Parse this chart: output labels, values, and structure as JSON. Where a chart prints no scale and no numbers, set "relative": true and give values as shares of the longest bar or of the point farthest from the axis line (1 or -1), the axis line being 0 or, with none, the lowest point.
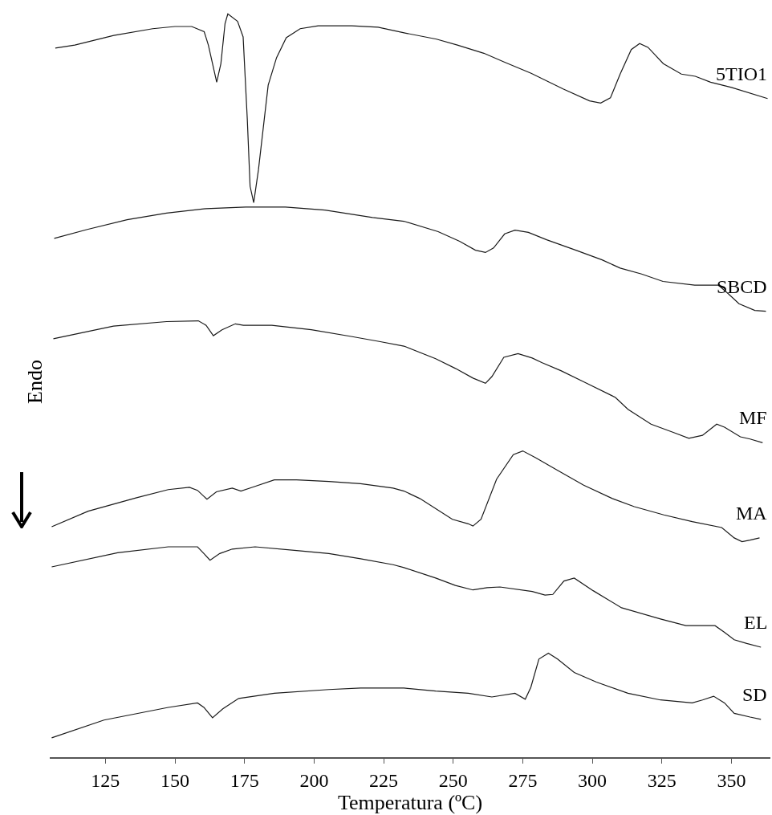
{
  "chart_data": {
    "type": "line",
    "relative": true,
    "xlabel": "Temperatura (ºC)",
    "ylabel": "Endo",
    "xlim": [
      105,
      364
    ],
    "xticks": [
      125,
      150,
      175,
      200,
      225,
      250,
      275,
      300,
      325,
      350
    ],
    "grid": false,
    "legend": false,
    "series": [
      {
        "name": "5TIO1",
        "color": "#1a1a1a",
        "x": [
          107,
          114,
          128,
          142,
          150,
          156,
          160.5,
          162,
          165,
          166.5,
          168,
          169,
          172.5,
          174.5,
          176,
          177,
          178.3,
          180,
          183.5,
          186.5,
          190,
          195,
          201.5,
          213.5,
          223,
          233,
          244,
          251.5,
          261,
          268.5,
          278,
          289.5,
          299,
          303,
          306.5,
          310,
          314,
          317,
          320,
          325.5,
          332,
          337,
          342.5,
          350,
          363
        ],
        "values": [
          0.954,
          0.958,
          0.971,
          0.98,
          0.983,
          0.983,
          0.976,
          0.958,
          0.908,
          0.933,
          0.987,
          1.0,
          0.99,
          0.969,
          0.858,
          0.768,
          0.746,
          0.79,
          0.904,
          0.941,
          0.968,
          0.98,
          0.984,
          0.984,
          0.982,
          0.974,
          0.966,
          0.958,
          0.947,
          0.935,
          0.92,
          0.899,
          0.883,
          0.88,
          0.887,
          0.919,
          0.952,
          0.96,
          0.955,
          0.933,
          0.919,
          0.916,
          0.908,
          0.901,
          0.886
        ]
      },
      {
        "name": "SBCD",
        "color": "#1a1a1a",
        "x": [
          106.6,
          118.5,
          132.8,
          147,
          161.2,
          175.4,
          189.7,
          203.9,
          221,
          232.3,
          244.6,
          252.3,
          258,
          261.6,
          264.5,
          268.5,
          272.2,
          277,
          283.6,
          294.1,
          303.5,
          310,
          317.7,
          325.4,
          336.8,
          345.3,
          349,
          352.7,
          358.4,
          362.4
        ],
        "values": [
          0.698,
          0.71,
          0.723,
          0.732,
          0.738,
          0.74,
          0.74,
          0.736,
          0.726,
          0.721,
          0.707,
          0.694,
          0.682,
          0.679,
          0.685,
          0.704,
          0.709,
          0.706,
          0.696,
          0.682,
          0.669,
          0.658,
          0.65,
          0.64,
          0.635,
          0.635,
          0.623,
          0.61,
          0.601,
          0.6
        ]
      },
      {
        "name": "MF",
        "color": "#1a1a1a",
        "x": [
          106.3,
          127.9,
          147,
          158.4,
          161.2,
          163.8,
          166.9,
          171.7,
          174.6,
          184.8,
          199,
          213.3,
          223.8,
          232.3,
          243.7,
          250.8,
          257.1,
          261.6,
          263.9,
          268.2,
          273.3,
          278.4,
          281.8,
          288.7,
          296.9,
          308.3,
          312.8,
          321.1,
          329.1,
          334.7,
          339.6,
          344.7,
          347.5,
          353.2,
          356.7,
          361.2
        ],
        "values": [
          0.563,
          0.58,
          0.586,
          0.587,
          0.581,
          0.567,
          0.575,
          0.583,
          0.581,
          0.581,
          0.575,
          0.566,
          0.559,
          0.553,
          0.536,
          0.523,
          0.51,
          0.503,
          0.512,
          0.538,
          0.543,
          0.537,
          0.531,
          0.52,
          0.505,
          0.484,
          0.468,
          0.448,
          0.437,
          0.429,
          0.433,
          0.448,
          0.444,
          0.431,
          0.428,
          0.423
        ]
      },
      {
        "name": "MA",
        "color": "#1a1a1a",
        "x": [
          105.7,
          118.8,
          136.2,
          147.6,
          155.2,
          158.1,
          161.5,
          164.9,
          170.6,
          173.7,
          177.7,
          185.7,
          193.7,
          205.3,
          216.7,
          228.4,
          232.3,
          238,
          249.7,
          255.4,
          257.1,
          260,
          265.6,
          271.6,
          275,
          279.6,
          287.5,
          296.9,
          307.2,
          315.1,
          325.7,
          335.9,
          346.5,
          351,
          353.8,
          356.7,
          360.1
        ],
        "values": [
          0.31,
          0.331,
          0.349,
          0.36,
          0.363,
          0.359,
          0.347,
          0.357,
          0.362,
          0.358,
          0.363,
          0.373,
          0.373,
          0.371,
          0.368,
          0.362,
          0.358,
          0.348,
          0.32,
          0.314,
          0.311,
          0.32,
          0.374,
          0.407,
          0.412,
          0.403,
          0.386,
          0.366,
          0.348,
          0.337,
          0.326,
          0.317,
          0.309,
          0.295,
          0.29,
          0.292,
          0.295
        ]
      },
      {
        "name": "EL",
        "color": "#1a1a1a",
        "x": [
          105.7,
          129.4,
          147.6,
          158.1,
          160.4,
          162.6,
          166.1,
          170.6,
          178.8,
          193.7,
          205.3,
          216.7,
          228.4,
          232.3,
          243.7,
          250.8,
          257.1,
          262.2,
          266.8,
          278.4,
          283,
          285.8,
          289.8,
          293.5,
          300.3,
          310.5,
          324.5,
          333.6,
          344.1,
          347.5,
          351,
          355.5,
          360.6
        ],
        "values": [
          0.256,
          0.275,
          0.283,
          0.283,
          0.274,
          0.265,
          0.274,
          0.28,
          0.283,
          0.278,
          0.274,
          0.267,
          0.259,
          0.255,
          0.241,
          0.231,
          0.225,
          0.228,
          0.229,
          0.223,
          0.218,
          0.219,
          0.237,
          0.241,
          0.224,
          0.201,
          0.186,
          0.177,
          0.177,
          0.168,
          0.158,
          0.153,
          0.148
        ]
      },
      {
        "name": "SD",
        "color": "#1a1a1a",
        "x": [
          105.7,
          124.5,
          147.6,
          158.1,
          160.4,
          163.5,
          167.2,
          172.9,
          185.7,
          205.3,
          216.7,
          232.3,
          243.7,
          255.4,
          263.9,
          272.2,
          275.9,
          277.9,
          280.8,
          284.2,
          287.5,
          293.5,
          301.5,
          312.8,
          324.5,
          335.9,
          339.6,
          343.6,
          347.5,
          351,
          356.7,
          360.6
        ],
        "values": [
          0.026,
          0.05,
          0.067,
          0.073,
          0.067,
          0.053,
          0.065,
          0.079,
          0.086,
          0.091,
          0.093,
          0.093,
          0.089,
          0.086,
          0.081,
          0.086,
          0.078,
          0.094,
          0.132,
          0.14,
          0.132,
          0.114,
          0.101,
          0.086,
          0.077,
          0.073,
          0.077,
          0.082,
          0.073,
          0.059,
          0.054,
          0.051
        ]
      }
    ]
  }
}
